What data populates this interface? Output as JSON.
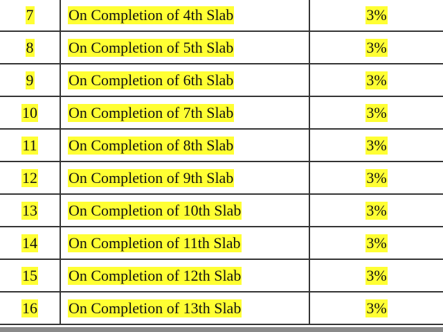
{
  "table": {
    "rows": [
      [
        "7",
        "On Completion of 4th Slab",
        "3%"
      ],
      [
        "8",
        "On Completion of 5th Slab",
        "3%"
      ],
      [
        "9",
        "On Completion of 6th Slab",
        "3%"
      ],
      [
        "10",
        "On Completion of 7th Slab",
        "3%"
      ],
      [
        "11",
        "On Completion of 8th Slab",
        "3%"
      ],
      [
        "12",
        "On Completion of 9th Slab",
        "3%"
      ],
      [
        "13",
        "On Completion of 10th Slab",
        "3%"
      ],
      [
        "14",
        "On Completion of 11th Slab",
        "3%"
      ],
      [
        "15",
        "On Completion of 12th Slab",
        "3%"
      ],
      [
        "16",
        "On Completion of 13th Slab",
        "3%"
      ]
    ]
  }
}
